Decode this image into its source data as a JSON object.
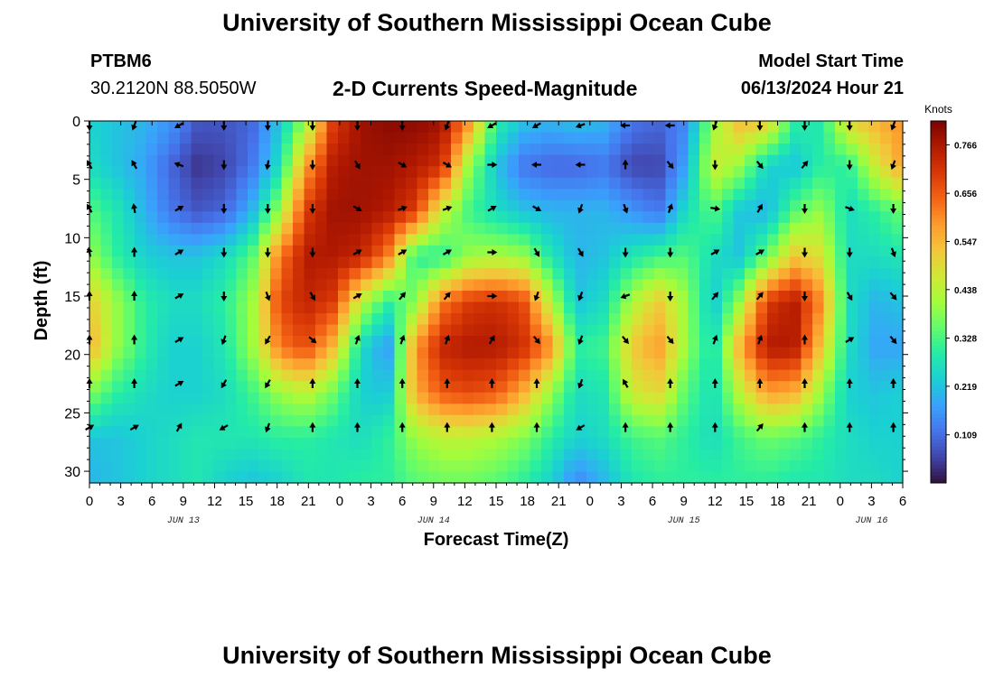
{
  "header": {
    "title_top": "University of Southern Mississippi Ocean Cube",
    "title_bottom": "University of Southern Mississippi Ocean Cube",
    "station_id": "PTBM6",
    "station_coords": "30.2120N  88.5050W",
    "plot_title": "2-D Currents Speed-Magnitude",
    "model_start_label": "Model Start Time",
    "model_start_value": "06/13/2024 Hour 21"
  },
  "chart_data": {
    "type": "heatmap",
    "xlabel": "Forecast Time(Z)",
    "ylabel": "Depth (ft)",
    "x_tick_labels": [
      "0",
      "3",
      "6",
      "9",
      "12",
      "15",
      "18",
      "21",
      "0",
      "3",
      "6",
      "9",
      "12",
      "15",
      "18",
      "21",
      "0",
      "3",
      "6",
      "9",
      "12",
      "15",
      "18",
      "21",
      "0",
      "3",
      "6"
    ],
    "x_date_labels": [
      {
        "label": "JUN 13",
        "at_hour": 9
      },
      {
        "label": "JUN 14",
        "at_hour": 33
      },
      {
        "label": "JUN 15",
        "at_hour": 57
      },
      {
        "label": "JUN 16",
        "at_hour": 75
      }
    ],
    "x_range_hours": [
      0,
      78
    ],
    "ylim": [
      0,
      31
    ],
    "y_ticks": [
      0,
      5,
      10,
      15,
      20,
      25,
      30
    ],
    "y_inverted": true,
    "colorbar": {
      "label": "Knots",
      "min": 0.0,
      "max": 0.82,
      "tick_labels": [
        "0.766",
        "0.656",
        "0.547",
        "0.438",
        "0.328",
        "0.219",
        "0.109"
      ],
      "tick_values": [
        0.766,
        0.656,
        0.547,
        0.438,
        0.328,
        0.219,
        0.109
      ],
      "colormap": [
        "#30123b",
        "#4145ab",
        "#4675ed",
        "#39a2fc",
        "#1bcfd4",
        "#24eca6",
        "#61fc6c",
        "#a4fc3b",
        "#d1e834",
        "#f3c63a",
        "#fe9b2d",
        "#f36315",
        "#d93806",
        "#b11901",
        "#7a0403"
      ]
    },
    "speed_knots_grid_note": "rows = depth 0..30 ft step 3.75 (9 rows), columns = forecast hours 0..78 step 2.6 (31 columns)",
    "speed_knots_grid": [
      [
        0.24,
        0.22,
        0.2,
        0.16,
        0.08,
        0.08,
        0.1,
        0.22,
        0.4,
        0.7,
        0.78,
        0.8,
        0.8,
        0.78,
        0.6,
        0.3,
        0.22,
        0.2,
        0.22,
        0.2,
        0.12,
        0.1,
        0.14,
        0.4,
        0.55,
        0.52,
        0.3,
        0.28,
        0.5,
        0.55,
        0.6
      ],
      [
        0.26,
        0.22,
        0.18,
        0.1,
        0.04,
        0.06,
        0.12,
        0.26,
        0.58,
        0.76,
        0.78,
        0.78,
        0.76,
        0.72,
        0.4,
        0.22,
        0.12,
        0.1,
        0.1,
        0.12,
        0.06,
        0.06,
        0.18,
        0.46,
        0.4,
        0.24,
        0.22,
        0.3,
        0.3,
        0.46,
        0.58
      ],
      [
        0.34,
        0.28,
        0.2,
        0.12,
        0.08,
        0.1,
        0.2,
        0.4,
        0.7,
        0.78,
        0.78,
        0.76,
        0.7,
        0.45,
        0.32,
        0.26,
        0.22,
        0.2,
        0.2,
        0.2,
        0.16,
        0.12,
        0.26,
        0.34,
        0.22,
        0.2,
        0.34,
        0.4,
        0.26,
        0.3,
        0.36
      ],
      [
        0.4,
        0.3,
        0.24,
        0.22,
        0.22,
        0.26,
        0.34,
        0.62,
        0.76,
        0.76,
        0.74,
        0.62,
        0.3,
        0.3,
        0.4,
        0.42,
        0.4,
        0.28,
        0.2,
        0.22,
        0.28,
        0.32,
        0.34,
        0.26,
        0.22,
        0.36,
        0.52,
        0.48,
        0.26,
        0.26,
        0.28
      ],
      [
        0.52,
        0.4,
        0.3,
        0.26,
        0.26,
        0.3,
        0.4,
        0.68,
        0.74,
        0.7,
        0.44,
        0.3,
        0.38,
        0.62,
        0.7,
        0.72,
        0.68,
        0.44,
        0.22,
        0.26,
        0.42,
        0.52,
        0.4,
        0.22,
        0.4,
        0.7,
        0.76,
        0.6,
        0.26,
        0.2,
        0.22
      ],
      [
        0.56,
        0.4,
        0.3,
        0.24,
        0.24,
        0.28,
        0.4,
        0.62,
        0.68,
        0.54,
        0.26,
        0.16,
        0.58,
        0.74,
        0.76,
        0.76,
        0.72,
        0.6,
        0.3,
        0.32,
        0.52,
        0.58,
        0.4,
        0.26,
        0.56,
        0.76,
        0.76,
        0.52,
        0.26,
        0.18,
        0.18
      ],
      [
        0.38,
        0.3,
        0.26,
        0.24,
        0.24,
        0.26,
        0.32,
        0.4,
        0.44,
        0.36,
        0.24,
        0.22,
        0.56,
        0.66,
        0.68,
        0.66,
        0.56,
        0.4,
        0.26,
        0.28,
        0.46,
        0.5,
        0.34,
        0.26,
        0.44,
        0.58,
        0.56,
        0.4,
        0.24,
        0.22,
        0.24
      ],
      [
        0.22,
        0.22,
        0.24,
        0.26,
        0.28,
        0.28,
        0.28,
        0.3,
        0.3,
        0.28,
        0.26,
        0.3,
        0.4,
        0.44,
        0.44,
        0.42,
        0.38,
        0.3,
        0.24,
        0.26,
        0.32,
        0.34,
        0.3,
        0.26,
        0.32,
        0.36,
        0.34,
        0.3,
        0.26,
        0.24,
        0.24
      ],
      [
        0.2,
        0.22,
        0.24,
        0.26,
        0.28,
        0.24,
        0.22,
        0.24,
        0.28,
        0.28,
        0.3,
        0.3,
        0.34,
        0.36,
        0.36,
        0.34,
        0.3,
        0.24,
        0.14,
        0.2,
        0.28,
        0.3,
        0.3,
        0.3,
        0.3,
        0.3,
        0.28,
        0.28,
        0.26,
        0.26,
        0.24
      ]
    ],
    "vector_columns_hours": [
      0,
      4.3,
      8.6,
      12.9,
      17.1,
      21.4,
      25.7,
      30,
      34.3,
      38.6,
      42.9,
      47.1,
      51.4,
      55.7,
      60,
      64.3,
      68.6,
      72.9,
      77.1
    ],
    "vector_rows_ft": [
      0,
      3.75,
      7.5,
      11.25,
      15,
      18.75,
      22.5,
      26.25
    ],
    "vector_directions_deg_note": "direction arrows point toward (compass degrees, 0 = up/north, 90 = right/east)",
    "vector_directions_deg": [
      [
        180,
        200,
        240,
        180,
        180,
        180,
        180,
        180,
        200,
        240,
        240,
        250,
        270,
        270,
        200,
        180,
        180,
        180,
        200
      ],
      [
        330,
        330,
        290,
        180,
        190,
        180,
        150,
        120,
        120,
        90,
        270,
        270,
        360,
        140,
        180,
        140,
        40,
        180,
        200
      ],
      [
        330,
        350,
        60,
        180,
        180,
        180,
        120,
        70,
        70,
        60,
        120,
        200,
        160,
        20,
        100,
        30,
        180,
        110,
        180
      ],
      [
        350,
        360,
        60,
        180,
        180,
        180,
        60,
        60,
        60,
        90,
        150,
        150,
        180,
        180,
        60,
        60,
        180,
        180,
        160
      ],
      [
        360,
        360,
        60,
        180,
        160,
        150,
        60,
        40,
        40,
        90,
        200,
        200,
        250,
        180,
        40,
        40,
        180,
        150,
        140
      ],
      [
        360,
        360,
        60,
        200,
        210,
        130,
        20,
        20,
        20,
        30,
        140,
        200,
        140,
        140,
        20,
        20,
        360,
        60,
        140
      ],
      [
        360,
        360,
        60,
        210,
        210,
        360,
        360,
        360,
        360,
        360,
        360,
        200,
        330,
        360,
        360,
        360,
        360,
        360,
        360
      ],
      [
        60,
        60,
        30,
        240,
        200,
        360,
        360,
        360,
        360,
        360,
        360,
        240,
        360,
        360,
        360,
        40,
        360,
        360,
        360
      ]
    ]
  }
}
